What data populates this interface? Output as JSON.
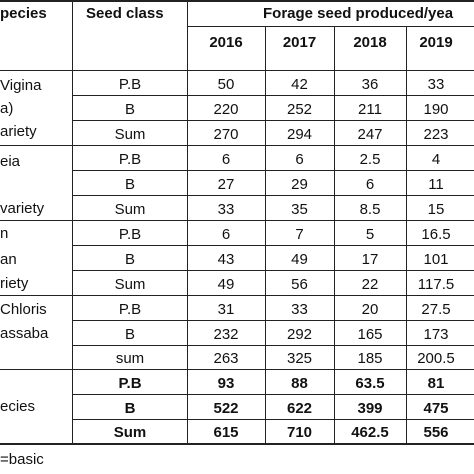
{
  "header": {
    "species": "pecies",
    "seed_class": "Seed class",
    "forage": "Forage seed produced/yea",
    "years": [
      "2016",
      "2017",
      "2018",
      "2019"
    ]
  },
  "groups": [
    {
      "species_lines": [
        "Vigina",
        "a)",
        "ariety"
      ],
      "rows": [
        {
          "cls": "P.B",
          "v": [
            "50",
            "42",
            "36",
            "33"
          ]
        },
        {
          "cls": "B",
          "v": [
            "220",
            "252",
            "211",
            "190"
          ]
        },
        {
          "cls": "Sum",
          "v": [
            "270",
            "294",
            "247",
            "223"
          ]
        }
      ]
    },
    {
      "species_lines": [
        "eia",
        "variety"
      ],
      "rows": [
        {
          "cls": "P.B",
          "v": [
            "6",
            "6",
            "2.5",
            "4"
          ]
        },
        {
          "cls": "B",
          "v": [
            "27",
            "29",
            "6",
            "11"
          ]
        },
        {
          "cls": "Sum",
          "v": [
            "33",
            "35",
            "8.5",
            "15"
          ]
        }
      ]
    },
    {
      "species_lines": [
        "n",
        "an",
        "riety"
      ],
      "rows": [
        {
          "cls": "P.B",
          "v": [
            "6",
            "7",
            "5",
            "16.5"
          ]
        },
        {
          "cls": "B",
          "v": [
            "43",
            "49",
            "17",
            "101"
          ]
        },
        {
          "cls": "Sum",
          "v": [
            "49",
            "56",
            "22",
            "117.5"
          ]
        }
      ]
    },
    {
      "species_lines": [
        "Chloris",
        "assaba"
      ],
      "rows": [
        {
          "cls": "P.B",
          "v": [
            "31",
            "33",
            "20",
            "27.5"
          ]
        },
        {
          "cls": "B",
          "v": [
            "232",
            "292",
            "165",
            "173"
          ]
        },
        {
          "cls": "sum",
          "v": [
            "263",
            "325",
            "185",
            "200.5"
          ]
        }
      ]
    }
  ],
  "totals": {
    "label": "ecies",
    "rows": [
      {
        "cls": "P.B",
        "v": [
          "93",
          "88",
          "63.5",
          "81"
        ]
      },
      {
        "cls": "B",
        "v": [
          "522",
          "622",
          "399",
          "475"
        ]
      },
      {
        "cls": "Sum",
        "v": [
          "615",
          "710",
          "462.5",
          "556"
        ]
      }
    ]
  },
  "footnote": "=basic"
}
